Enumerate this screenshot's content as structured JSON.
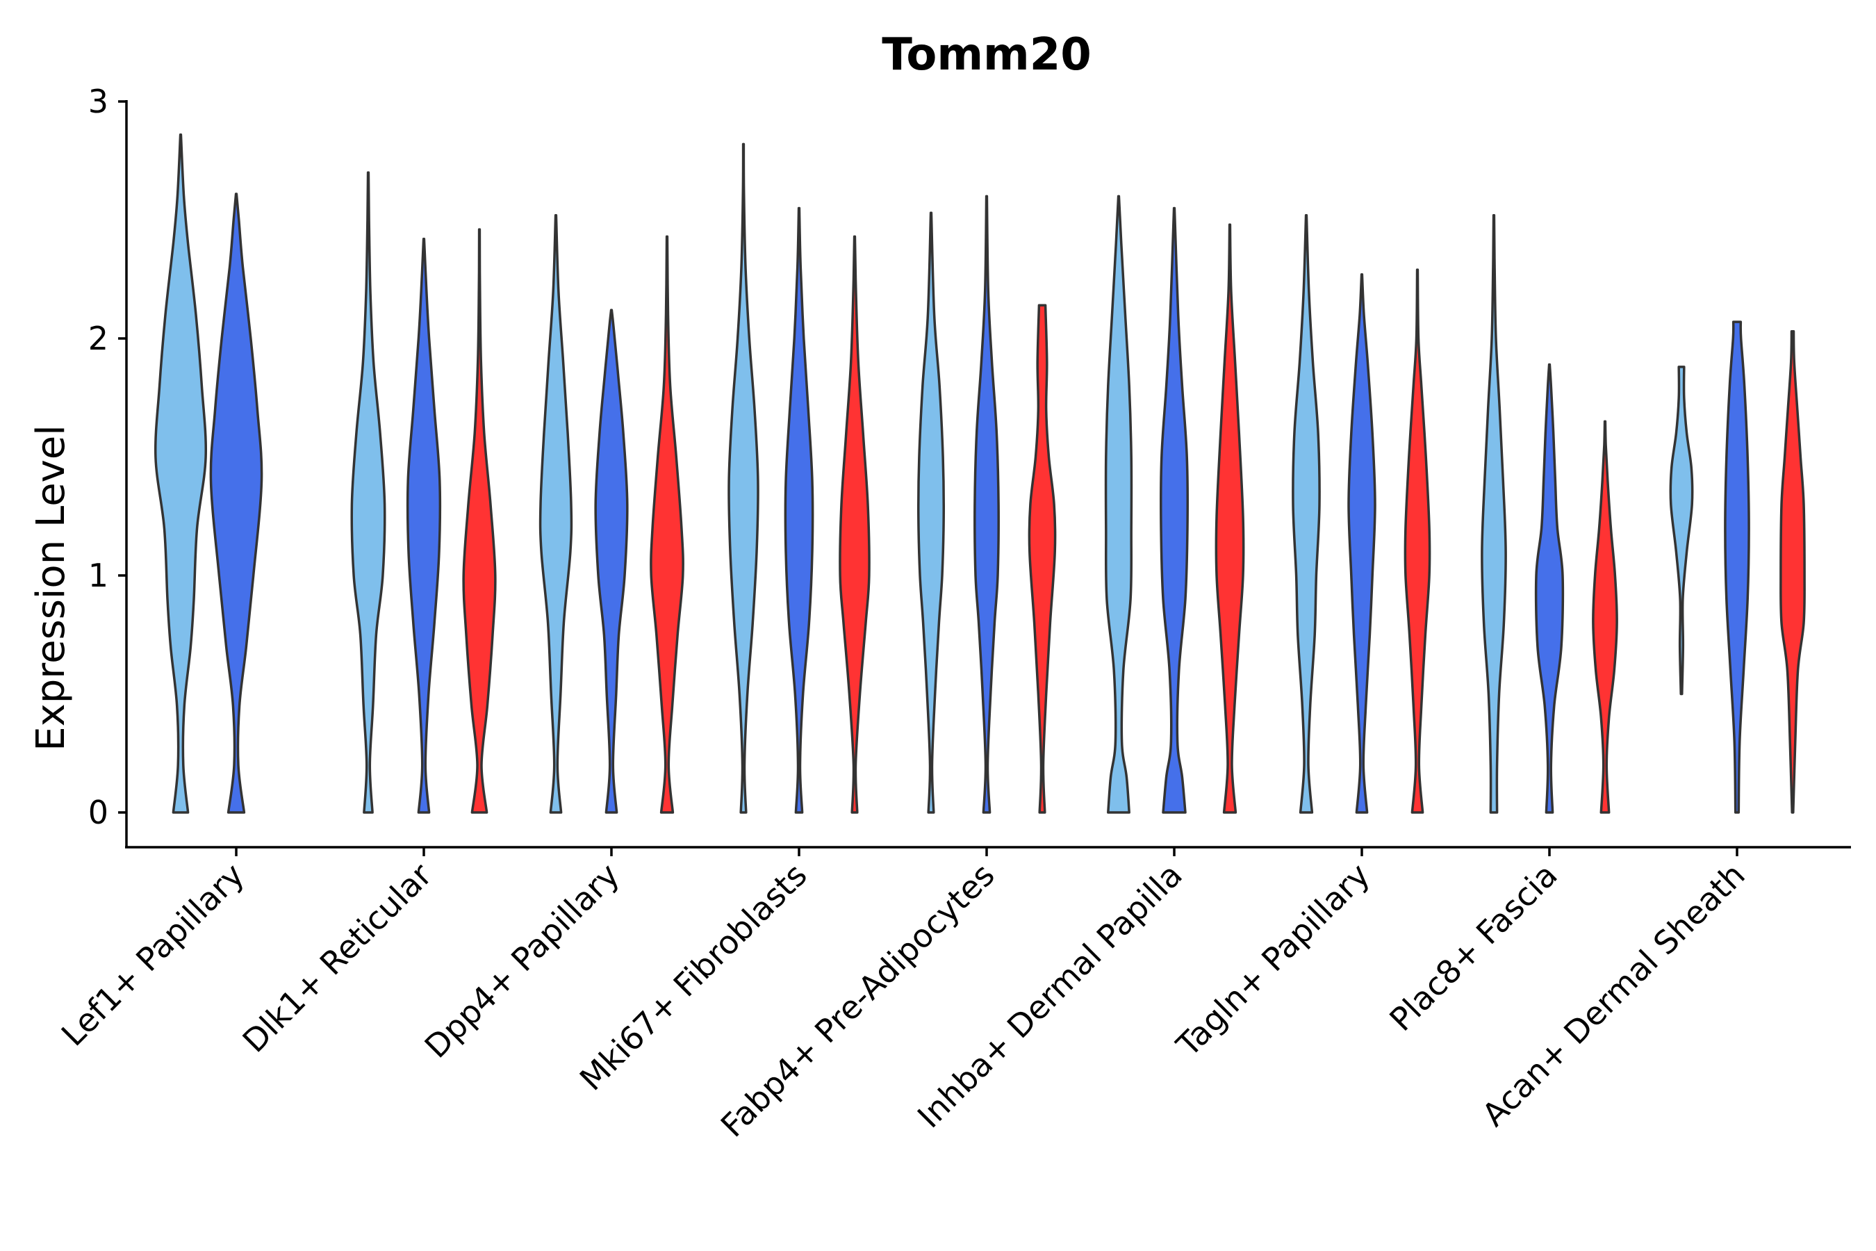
{
  "chart_data": {
    "type": "violin",
    "title": "Tomm20",
    "xlabel": "",
    "ylabel": "Expression Level",
    "ylim": [
      -0.14,
      3.0
    ],
    "yticks": [
      0,
      1,
      2,
      3
    ],
    "grid": false,
    "legend": "none",
    "series_colors": {
      "group1": "#7fbfec",
      "group2": "#4570ea",
      "group3": "#ff3333"
    },
    "categories": [
      "Lef1+ Papillary",
      "Dlk1+ Reticular",
      "Dpp4+ Papillary",
      "Mki67+ Fibroblasts",
      "Fabp4+ Pre-Adipocytes",
      "Inhba+ Dermal Papilla",
      "Tagln+ Papillary",
      "Plac8+ Fascia",
      "Acan+ Dermal Sheath"
    ],
    "violins": [
      {
        "category": 0,
        "group": "group1",
        "min": 0,
        "max": 2.86,
        "density": [
          [
            0,
            0.28
          ],
          [
            0.2,
            0.1
          ],
          [
            0.45,
            0.14
          ],
          [
            0.7,
            0.38
          ],
          [
            0.9,
            0.5
          ],
          [
            1.2,
            0.62
          ],
          [
            1.5,
            0.95
          ],
          [
            1.8,
            0.8
          ],
          [
            2.1,
            0.58
          ],
          [
            2.4,
            0.28
          ],
          [
            2.6,
            0.12
          ],
          [
            2.86,
            0.01
          ]
        ]
      },
      {
        "category": 0,
        "group": "group2",
        "min": 0,
        "max": 2.61,
        "density": [
          [
            0,
            0.3
          ],
          [
            0.2,
            0.08
          ],
          [
            0.45,
            0.12
          ],
          [
            0.7,
            0.38
          ],
          [
            1.0,
            0.65
          ],
          [
            1.4,
            0.96
          ],
          [
            1.7,
            0.8
          ],
          [
            2.0,
            0.55
          ],
          [
            2.3,
            0.25
          ],
          [
            2.5,
            0.1
          ],
          [
            2.61,
            0.01
          ]
        ]
      },
      {
        "category": 1,
        "group": "group1",
        "min": 0,
        "max": 2.7,
        "density": [
          [
            0,
            0.16
          ],
          [
            0.2,
            0.06
          ],
          [
            0.45,
            0.18
          ],
          [
            0.75,
            0.3
          ],
          [
            1.0,
            0.55
          ],
          [
            1.3,
            0.62
          ],
          [
            1.6,
            0.45
          ],
          [
            1.9,
            0.2
          ],
          [
            2.2,
            0.08
          ],
          [
            2.5,
            0.03
          ],
          [
            2.7,
            0.01
          ]
        ]
      },
      {
        "category": 1,
        "group": "group2",
        "min": 0,
        "max": 2.42,
        "density": [
          [
            0,
            0.2
          ],
          [
            0.2,
            0.06
          ],
          [
            0.5,
            0.18
          ],
          [
            0.8,
            0.4
          ],
          [
            1.1,
            0.58
          ],
          [
            1.4,
            0.6
          ],
          [
            1.7,
            0.4
          ],
          [
            2.0,
            0.2
          ],
          [
            2.2,
            0.1
          ],
          [
            2.42,
            0.01
          ]
        ]
      },
      {
        "category": 1,
        "group": "group3",
        "min": 0,
        "max": 2.46,
        "density": [
          [
            0,
            0.28
          ],
          [
            0.2,
            0.08
          ],
          [
            0.45,
            0.3
          ],
          [
            0.75,
            0.5
          ],
          [
            1.0,
            0.6
          ],
          [
            1.3,
            0.42
          ],
          [
            1.6,
            0.18
          ],
          [
            1.9,
            0.06
          ],
          [
            2.2,
            0.02
          ],
          [
            2.46,
            0.01
          ]
        ]
      },
      {
        "category": 2,
        "group": "group1",
        "min": 0,
        "max": 2.52,
        "density": [
          [
            0,
            0.2
          ],
          [
            0.2,
            0.06
          ],
          [
            0.5,
            0.18
          ],
          [
            0.8,
            0.3
          ],
          [
            1.1,
            0.55
          ],
          [
            1.3,
            0.58
          ],
          [
            1.6,
            0.45
          ],
          [
            1.9,
            0.28
          ],
          [
            2.2,
            0.1
          ],
          [
            2.52,
            0.01
          ]
        ]
      },
      {
        "category": 2,
        "group": "group2",
        "min": 0,
        "max": 2.12,
        "density": [
          [
            0,
            0.2
          ],
          [
            0.2,
            0.06
          ],
          [
            0.5,
            0.18
          ],
          [
            0.75,
            0.28
          ],
          [
            1.0,
            0.5
          ],
          [
            1.3,
            0.6
          ],
          [
            1.6,
            0.45
          ],
          [
            1.85,
            0.25
          ],
          [
            2.05,
            0.08
          ],
          [
            2.12,
            0.01
          ]
        ]
      },
      {
        "category": 2,
        "group": "group3",
        "min": 0,
        "max": 2.43,
        "density": [
          [
            0,
            0.22
          ],
          [
            0.2,
            0.06
          ],
          [
            0.45,
            0.2
          ],
          [
            0.75,
            0.4
          ],
          [
            1.0,
            0.6
          ],
          [
            1.2,
            0.55
          ],
          [
            1.5,
            0.35
          ],
          [
            1.8,
            0.12
          ],
          [
            2.1,
            0.04
          ],
          [
            2.43,
            0.01
          ]
        ]
      },
      {
        "category": 3,
        "group": "group1",
        "min": 0,
        "max": 2.82,
        "density": [
          [
            0,
            0.1
          ],
          [
            0.2,
            0.04
          ],
          [
            0.5,
            0.15
          ],
          [
            0.8,
            0.35
          ],
          [
            1.1,
            0.5
          ],
          [
            1.4,
            0.55
          ],
          [
            1.7,
            0.42
          ],
          [
            2.0,
            0.22
          ],
          [
            2.3,
            0.08
          ],
          [
            2.6,
            0.02
          ],
          [
            2.82,
            0.01
          ]
        ]
      },
      {
        "category": 3,
        "group": "group2",
        "min": 0,
        "max": 2.55,
        "density": [
          [
            0,
            0.12
          ],
          [
            0.2,
            0.04
          ],
          [
            0.5,
            0.15
          ],
          [
            0.8,
            0.38
          ],
          [
            1.1,
            0.5
          ],
          [
            1.4,
            0.5
          ],
          [
            1.7,
            0.35
          ],
          [
            2.0,
            0.18
          ],
          [
            2.3,
            0.06
          ],
          [
            2.55,
            0.01
          ]
        ]
      },
      {
        "category": 3,
        "group": "group3",
        "min": 0,
        "max": 2.43,
        "density": [
          [
            0,
            0.1
          ],
          [
            0.2,
            0.04
          ],
          [
            0.5,
            0.2
          ],
          [
            0.8,
            0.42
          ],
          [
            1.0,
            0.55
          ],
          [
            1.3,
            0.5
          ],
          [
            1.6,
            0.32
          ],
          [
            1.9,
            0.14
          ],
          [
            2.2,
            0.05
          ],
          [
            2.43,
            0.01
          ]
        ]
      },
      {
        "category": 4,
        "group": "group1",
        "min": 0,
        "max": 2.53,
        "density": [
          [
            0,
            0.1
          ],
          [
            0.2,
            0.04
          ],
          [
            0.5,
            0.15
          ],
          [
            0.8,
            0.3
          ],
          [
            1.0,
            0.42
          ],
          [
            1.25,
            0.48
          ],
          [
            1.5,
            0.45
          ],
          [
            1.8,
            0.32
          ],
          [
            2.1,
            0.12
          ],
          [
            2.53,
            0.01
          ]
        ]
      },
      {
        "category": 4,
        "group": "group2",
        "min": 0,
        "max": 2.6,
        "density": [
          [
            0,
            0.12
          ],
          [
            0.2,
            0.04
          ],
          [
            0.5,
            0.15
          ],
          [
            0.8,
            0.3
          ],
          [
            1.0,
            0.42
          ],
          [
            1.3,
            0.45
          ],
          [
            1.6,
            0.38
          ],
          [
            1.9,
            0.2
          ],
          [
            2.2,
            0.06
          ],
          [
            2.6,
            0.01
          ]
        ]
      },
      {
        "category": 4,
        "group": "group3",
        "min": 0,
        "max": 2.14,
        "density": [
          [
            0,
            0.1
          ],
          [
            0.2,
            0.04
          ],
          [
            0.5,
            0.15
          ],
          [
            0.8,
            0.3
          ],
          [
            1.1,
            0.48
          ],
          [
            1.3,
            0.45
          ],
          [
            1.5,
            0.25
          ],
          [
            1.7,
            0.15
          ],
          [
            1.9,
            0.18
          ],
          [
            2.14,
            0.12
          ]
        ]
      },
      {
        "category": 5,
        "group": "group1",
        "min": 0,
        "max": 2.6,
        "density": [
          [
            0,
            0.4
          ],
          [
            0.15,
            0.3
          ],
          [
            0.3,
            0.12
          ],
          [
            0.6,
            0.18
          ],
          [
            0.9,
            0.45
          ],
          [
            1.2,
            0.48
          ],
          [
            1.5,
            0.48
          ],
          [
            1.8,
            0.4
          ],
          [
            2.1,
            0.25
          ],
          [
            2.4,
            0.1
          ],
          [
            2.6,
            0.01
          ]
        ]
      },
      {
        "category": 5,
        "group": "group2",
        "min": 0,
        "max": 2.55,
        "density": [
          [
            0,
            0.42
          ],
          [
            0.15,
            0.3
          ],
          [
            0.3,
            0.12
          ],
          [
            0.6,
            0.18
          ],
          [
            0.9,
            0.42
          ],
          [
            1.2,
            0.5
          ],
          [
            1.5,
            0.48
          ],
          [
            1.8,
            0.3
          ],
          [
            2.1,
            0.15
          ],
          [
            2.55,
            0.01
          ]
        ]
      },
      {
        "category": 5,
        "group": "group3",
        "min": 0,
        "max": 2.48,
        "density": [
          [
            0,
            0.22
          ],
          [
            0.2,
            0.08
          ],
          [
            0.45,
            0.18
          ],
          [
            0.75,
            0.35
          ],
          [
            1.0,
            0.5
          ],
          [
            1.25,
            0.5
          ],
          [
            1.6,
            0.35
          ],
          [
            1.9,
            0.2
          ],
          [
            2.2,
            0.05
          ],
          [
            2.48,
            0.01
          ]
        ]
      },
      {
        "category": 6,
        "group": "group1",
        "min": 0,
        "max": 2.52,
        "density": [
          [
            0,
            0.22
          ],
          [
            0.2,
            0.08
          ],
          [
            0.45,
            0.15
          ],
          [
            0.75,
            0.32
          ],
          [
            1.0,
            0.38
          ],
          [
            1.3,
            0.5
          ],
          [
            1.6,
            0.45
          ],
          [
            1.9,
            0.25
          ],
          [
            2.2,
            0.1
          ],
          [
            2.52,
            0.01
          ]
        ]
      },
      {
        "category": 6,
        "group": "group2",
        "min": 0,
        "max": 2.27,
        "density": [
          [
            0,
            0.2
          ],
          [
            0.2,
            0.06
          ],
          [
            0.45,
            0.15
          ],
          [
            0.75,
            0.3
          ],
          [
            1.0,
            0.4
          ],
          [
            1.3,
            0.5
          ],
          [
            1.6,
            0.4
          ],
          [
            1.9,
            0.22
          ],
          [
            2.1,
            0.08
          ],
          [
            2.27,
            0.01
          ]
        ]
      },
      {
        "category": 6,
        "group": "group3",
        "min": 0,
        "max": 2.29,
        "density": [
          [
            0,
            0.2
          ],
          [
            0.2,
            0.06
          ],
          [
            0.45,
            0.15
          ],
          [
            0.75,
            0.3
          ],
          [
            1.0,
            0.45
          ],
          [
            1.2,
            0.45
          ],
          [
            1.5,
            0.32
          ],
          [
            1.8,
            0.15
          ],
          [
            2.0,
            0.04
          ],
          [
            2.29,
            0.01
          ]
        ]
      },
      {
        "category": 7,
        "group": "group1",
        "min": 0,
        "max": 2.52,
        "density": [
          [
            0,
            0.12
          ],
          [
            0.2,
            0.12
          ],
          [
            0.5,
            0.2
          ],
          [
            0.8,
            0.38
          ],
          [
            1.1,
            0.45
          ],
          [
            1.4,
            0.35
          ],
          [
            1.7,
            0.22
          ],
          [
            2.0,
            0.08
          ],
          [
            2.3,
            0.03
          ],
          [
            2.52,
            0.01
          ]
        ]
      },
      {
        "category": 7,
        "group": "group2",
        "min": 0,
        "max": 1.89,
        "density": [
          [
            0,
            0.12
          ],
          [
            0.2,
            0.06
          ],
          [
            0.45,
            0.18
          ],
          [
            0.7,
            0.45
          ],
          [
            1.0,
            0.5
          ],
          [
            1.2,
            0.3
          ],
          [
            1.4,
            0.22
          ],
          [
            1.6,
            0.15
          ],
          [
            1.8,
            0.06
          ],
          [
            1.89,
            0.01
          ]
        ]
      },
      {
        "category": 7,
        "group": "group3",
        "min": 0,
        "max": 1.65,
        "density": [
          [
            0,
            0.15
          ],
          [
            0.2,
            0.06
          ],
          [
            0.4,
            0.15
          ],
          [
            0.6,
            0.35
          ],
          [
            0.8,
            0.45
          ],
          [
            1.0,
            0.38
          ],
          [
            1.2,
            0.22
          ],
          [
            1.4,
            0.1
          ],
          [
            1.55,
            0.03
          ],
          [
            1.65,
            0.01
          ]
        ]
      },
      {
        "category": 8,
        "group": "group1",
        "min": 0.5,
        "max": 1.88,
        "density": [
          [
            0.5,
            0.02
          ],
          [
            0.7,
            0.06
          ],
          [
            0.9,
            0.05
          ],
          [
            1.1,
            0.2
          ],
          [
            1.3,
            0.4
          ],
          [
            1.45,
            0.38
          ],
          [
            1.6,
            0.2
          ],
          [
            1.75,
            0.1
          ],
          [
            1.88,
            0.1
          ]
        ]
      },
      {
        "category": 8,
        "group": "group2",
        "min": 0,
        "max": 2.07,
        "density": [
          [
            0,
            0.06
          ],
          [
            0.3,
            0.1
          ],
          [
            0.6,
            0.25
          ],
          [
            0.9,
            0.4
          ],
          [
            1.2,
            0.45
          ],
          [
            1.5,
            0.4
          ],
          [
            1.8,
            0.28
          ],
          [
            2.0,
            0.15
          ],
          [
            2.07,
            0.14
          ]
        ]
      },
      {
        "category": 8,
        "group": "group3",
        "min": 0,
        "max": 2.03,
        "density": [
          [
            0,
            0.02
          ],
          [
            0.3,
            0.1
          ],
          [
            0.6,
            0.2
          ],
          [
            0.8,
            0.42
          ],
          [
            1.0,
            0.45
          ],
          [
            1.3,
            0.42
          ],
          [
            1.5,
            0.3
          ],
          [
            1.7,
            0.18
          ],
          [
            1.9,
            0.06
          ],
          [
            2.03,
            0.04
          ]
        ]
      }
    ]
  }
}
